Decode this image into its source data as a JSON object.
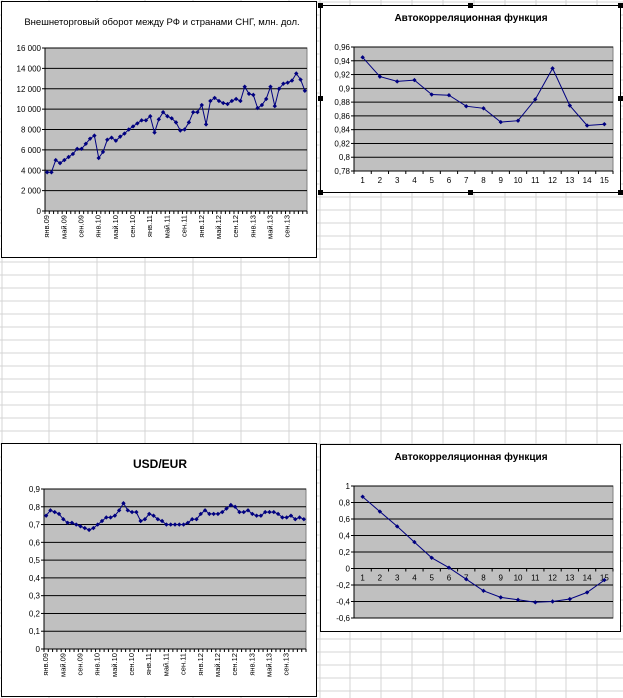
{
  "colors": {
    "plot_bg": "#c0c0c0",
    "line": "#000080",
    "grid": "#000000",
    "sheet_grid": "#d4d4d4"
  },
  "chart_data": [
    {
      "type": "line",
      "title": "Внешнеторговый оборот между РФ и странами СНГ, млн. дол.",
      "ylim": [
        0,
        16000
      ],
      "y_ticks": [
        "0",
        "2 000",
        "4 000",
        "6 000",
        "8 000",
        "10 000",
        "12 000",
        "14 000",
        "16 000"
      ],
      "x_tick_labels": [
        "янв.09",
        "май.09",
        "сен.09",
        "янв.10",
        "май.10",
        "сен.10",
        "янв.11",
        "май.11",
        "сен.11",
        "янв.12",
        "май.12",
        "сен.12",
        "янв.13",
        "май.13",
        "сен.13"
      ],
      "values": [
        3800,
        3800,
        5000,
        4700,
        5000,
        5300,
        5600,
        6100,
        6100,
        6600,
        7100,
        7400,
        5200,
        5800,
        7000,
        7200,
        6900,
        7300,
        7600,
        8000,
        8300,
        8600,
        8900,
        8900,
        9300,
        7700,
        9000,
        9700,
        9300,
        9100,
        8700,
        7900,
        8000,
        8700,
        9700,
        9700,
        10400,
        8500,
        10800,
        11100,
        10800,
        10600,
        10500,
        10800,
        11000,
        10800,
        12200,
        11500,
        11400,
        10100,
        10400,
        11000,
        12200,
        10300,
        12000,
        12500,
        12600,
        12800,
        13500,
        12900,
        11800
      ]
    },
    {
      "type": "line",
      "title": "Автокорреляционная функция",
      "ylim": [
        0.78,
        0.96
      ],
      "y_ticks": [
        "0,78",
        "0,8",
        "0,82",
        "0,84",
        "0,86",
        "0,88",
        "0,9",
        "0,92",
        "0,94",
        "0,96"
      ],
      "categories": [
        "1",
        "2",
        "3",
        "4",
        "5",
        "6",
        "7",
        "8",
        "9",
        "10",
        "11",
        "12",
        "13",
        "14",
        "15"
      ],
      "values": [
        0.945,
        0.917,
        0.91,
        0.912,
        0.891,
        0.89,
        0.874,
        0.871,
        0.851,
        0.853,
        0.884,
        0.929,
        0.875,
        0.846,
        0.848
      ]
    },
    {
      "type": "line",
      "title": "USD/EUR",
      "ylim": [
        0,
        0.9
      ],
      "y_ticks": [
        "0",
        "0,1",
        "0,2",
        "0,3",
        "0,4",
        "0,5",
        "0,6",
        "0,7",
        "0,8",
        "0,9"
      ],
      "x_tick_labels": [
        "янв.09",
        "май.09",
        "сен.09",
        "янв.10",
        "май.10",
        "сен.10",
        "янв.11",
        "май.11",
        "сен.11",
        "янв.12",
        "май.12",
        "сен.12",
        "янв.13",
        "май.13",
        "сен.13"
      ],
      "values": [
        0.75,
        0.78,
        0.77,
        0.76,
        0.73,
        0.71,
        0.71,
        0.7,
        0.69,
        0.68,
        0.67,
        0.68,
        0.7,
        0.72,
        0.74,
        0.74,
        0.75,
        0.78,
        0.82,
        0.78,
        0.77,
        0.77,
        0.72,
        0.73,
        0.76,
        0.75,
        0.73,
        0.72,
        0.7,
        0.7,
        0.7,
        0.7,
        0.7,
        0.71,
        0.73,
        0.73,
        0.76,
        0.78,
        0.76,
        0.76,
        0.76,
        0.77,
        0.79,
        0.81,
        0.8,
        0.77,
        0.77,
        0.78,
        0.76,
        0.75,
        0.75,
        0.77,
        0.77,
        0.77,
        0.76,
        0.74,
        0.74,
        0.75,
        0.73,
        0.74,
        0.73
      ]
    },
    {
      "type": "line",
      "title": "Автокорреляционная функция",
      "ylim": [
        -0.6,
        1
      ],
      "y_ticks": [
        "-0,6",
        "-0,4",
        "-0,2",
        "0",
        "0,2",
        "0,4",
        "0,6",
        "0,8",
        "1"
      ],
      "categories": [
        "1",
        "2",
        "3",
        "4",
        "5",
        "6",
        "7",
        "8",
        "9",
        "10",
        "11",
        "12",
        "13",
        "14",
        "15"
      ],
      "values": [
        0.87,
        0.69,
        0.51,
        0.32,
        0.13,
        0.01,
        -0.13,
        -0.27,
        -0.35,
        -0.38,
        -0.41,
        -0.4,
        -0.37,
        -0.29,
        -0.14
      ]
    }
  ]
}
